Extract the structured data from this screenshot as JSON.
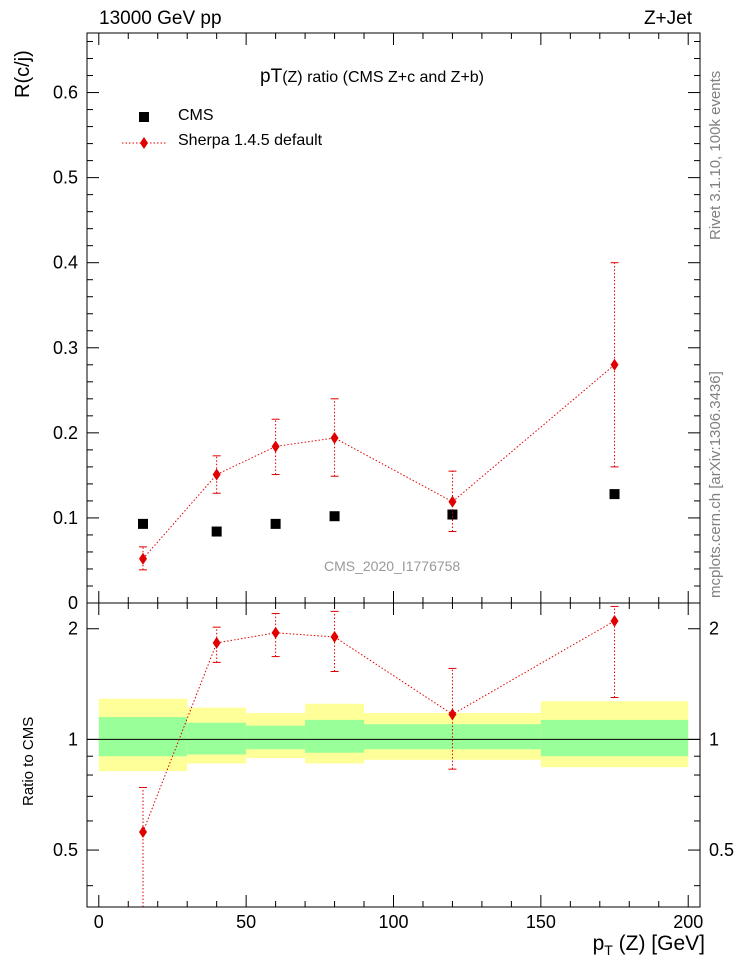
{
  "header": {
    "left": "13000 GeV pp",
    "right": "Z+Jet"
  },
  "side_labels": {
    "rivet": "Rivet 3.1.10,  100k events",
    "mcplots": "mcplots.cern.ch [arXiv:1306.3436]"
  },
  "colors": {
    "data": "#000000",
    "mc": "#e00000",
    "band_outer": "#ffff99",
    "band_inner": "#99ff99",
    "watermark": "#999999"
  },
  "chart_data": [
    {
      "type": "scatter",
      "title": "pT(Z) ratio (CMS  Z+c and Z+b)",
      "title_parts": {
        "main": "pT",
        "sub": "(Z) ratio (CMS  Z+c and Z+b)"
      },
      "ylabel": "R(c/j)",
      "ylim": [
        0,
        0.67
      ],
      "yticks": [
        0.1,
        0.2,
        0.3,
        0.4,
        0.5,
        0.6
      ],
      "ytick_labels": [
        "0.1",
        "0.2",
        "0.3",
        "0.4",
        "0.5",
        "0.6"
      ],
      "partial_zero_label": "0",
      "watermark": "CMS_2020_I1776758",
      "legend": {
        "position": "top-left",
        "entries": [
          "CMS",
          "Sherpa 1.4.5 default"
        ]
      },
      "series": [
        {
          "name": "CMS",
          "marker": "square",
          "x": [
            15,
            40,
            60,
            80,
            120,
            175
          ],
          "y": [
            0.093,
            0.084,
            0.093,
            0.102,
            0.104,
            0.128
          ]
        },
        {
          "name": "Sherpa 1.4.5 default",
          "marker": "diamond",
          "line": "dotted",
          "x": [
            15,
            40,
            60,
            80,
            120,
            175
          ],
          "y": [
            0.052,
            0.151,
            0.184,
            0.194,
            0.119,
            0.28
          ],
          "err_lo": [
            0.039,
            0.129,
            0.151,
            0.149,
            0.084,
            0.16
          ],
          "err_hi": [
            0.066,
            0.173,
            0.216,
            0.24,
            0.155,
            0.4
          ]
        }
      ]
    },
    {
      "type": "scatter",
      "ylabel": "Ratio to CMS",
      "xlabel": "p_T (Z) [GeV]",
      "xlabel_parts": {
        "main": "p",
        "sub": "T",
        "rest": " (Z) [GeV]"
      },
      "xlim": [
        -4,
        204
      ],
      "ylim": [
        0.35,
        2.35
      ],
      "xticks": [
        0,
        50,
        100,
        150,
        200
      ],
      "xtick_labels": [
        "0",
        "50",
        "100",
        "150",
        "200"
      ],
      "yticks": [
        0.5,
        1,
        2
      ],
      "ytick_labels": [
        "0.5",
        "1",
        "2"
      ],
      "bands": [
        {
          "x0": 0,
          "x1": 30,
          "outer": [
            0.82,
            1.29
          ],
          "inner": [
            0.9,
            1.15
          ]
        },
        {
          "x0": 30,
          "x1": 50,
          "outer": [
            0.86,
            1.22
          ],
          "inner": [
            0.91,
            1.11
          ]
        },
        {
          "x0": 50,
          "x1": 70,
          "outer": [
            0.89,
            1.18
          ],
          "inner": [
            0.94,
            1.09
          ]
        },
        {
          "x0": 70,
          "x1": 90,
          "outer": [
            0.86,
            1.25
          ],
          "inner": [
            0.92,
            1.13
          ]
        },
        {
          "x0": 90,
          "x1": 150,
          "outer": [
            0.88,
            1.18
          ],
          "inner": [
            0.94,
            1.1
          ]
        },
        {
          "x0": 150,
          "x1": 200,
          "outer": [
            0.84,
            1.27
          ],
          "inner": [
            0.9,
            1.13
          ]
        }
      ],
      "series": [
        {
          "name": "Sherpa 1.4.5 default",
          "marker": "diamond",
          "line": "dotted",
          "x": [
            15,
            40,
            60,
            80,
            120,
            175
          ],
          "y": [
            0.56,
            1.83,
            1.95,
            1.9,
            1.17,
            2.1
          ],
          "err_lo": [
            0.35,
            1.62,
            1.68,
            1.53,
            0.83,
            1.3
          ],
          "err_hi": [
            0.74,
            2.02,
            2.2,
            2.23,
            1.56,
            2.3
          ]
        }
      ]
    }
  ]
}
